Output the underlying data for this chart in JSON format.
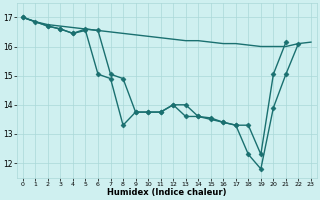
{
  "xlabel": "Humidex (Indice chaleur)",
  "xlim": [
    -0.5,
    23.5
  ],
  "ylim": [
    11.5,
    17.5
  ],
  "xticks": [
    0,
    1,
    2,
    3,
    4,
    5,
    6,
    7,
    8,
    9,
    10,
    11,
    12,
    13,
    14,
    15,
    16,
    17,
    18,
    19,
    20,
    21,
    22,
    23
  ],
  "yticks": [
    12,
    13,
    14,
    15,
    16,
    17
  ],
  "background_color": "#cff0f0",
  "grid_color": "#aad8d8",
  "line_color": "#1a7070",
  "series": [
    {
      "x": [
        0,
        1,
        2,
        3,
        4,
        5,
        6,
        7,
        8,
        9,
        10,
        11,
        12,
        13,
        14,
        15,
        16,
        17,
        18,
        19,
        20,
        21,
        22,
        23
      ],
      "y": [
        17.0,
        16.85,
        16.75,
        16.7,
        16.65,
        16.6,
        16.55,
        16.5,
        16.45,
        16.4,
        16.35,
        16.3,
        16.25,
        16.2,
        16.2,
        16.15,
        16.1,
        16.1,
        16.05,
        16.0,
        16.0,
        16.0,
        16.1,
        16.15
      ],
      "marker": null,
      "lw": 1.0
    },
    {
      "x": [
        0,
        1,
        2,
        3,
        4,
        5,
        6,
        7,
        8,
        9,
        10,
        11,
        12,
        13,
        14,
        15,
        16,
        17,
        18,
        19,
        20,
        21,
        22
      ],
      "y": [
        17.0,
        16.85,
        16.7,
        16.6,
        16.45,
        16.55,
        15.05,
        14.9,
        13.3,
        13.75,
        13.75,
        13.75,
        14.0,
        13.6,
        13.6,
        13.5,
        13.4,
        13.3,
        12.3,
        11.8,
        13.9,
        15.05,
        16.1
      ],
      "marker": "D",
      "lw": 1.0
    },
    {
      "x": [
        0,
        2,
        3,
        4,
        5,
        6,
        7,
        8,
        9,
        10,
        11,
        12,
        13,
        14,
        15,
        16,
        17,
        18,
        19,
        20,
        21
      ],
      "y": [
        17.0,
        16.7,
        16.6,
        16.45,
        16.6,
        16.55,
        15.05,
        14.9,
        13.75,
        13.75,
        13.75,
        14.0,
        14.0,
        13.6,
        13.55,
        13.4,
        13.3,
        13.3,
        12.3,
        15.05,
        16.15
      ],
      "marker": "D",
      "lw": 1.0
    }
  ]
}
